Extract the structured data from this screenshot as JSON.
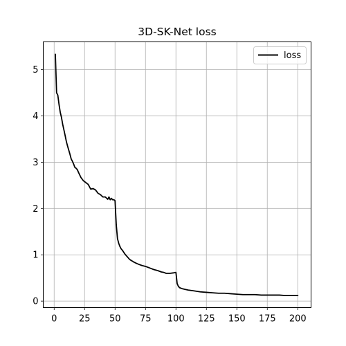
{
  "chart_data": {
    "type": "line",
    "title": "3D-SK-Net loss",
    "xlabel": "",
    "ylabel": "",
    "xlim": [
      -8.95,
      210.95
    ],
    "ylim": [
      -0.14,
      5.6
    ],
    "xticks": [
      0,
      25,
      50,
      75,
      100,
      125,
      150,
      175,
      200
    ],
    "yticks": [
      0,
      1,
      2,
      3,
      4,
      5
    ],
    "grid": true,
    "legend_position": "top-right",
    "series": [
      {
        "name": "loss",
        "color": "#000000",
        "x": [
          1,
          2,
          3,
          4,
          5,
          6,
          7,
          8,
          9,
          10,
          11,
          12,
          13,
          14,
          15,
          16,
          17,
          18,
          19,
          20,
          22,
          24,
          26,
          28,
          30,
          32,
          34,
          36,
          38,
          40,
          42,
          44,
          45,
          46,
          47,
          48,
          49,
          50,
          51,
          52,
          53,
          54,
          55,
          56,
          58,
          60,
          62,
          65,
          68,
          70,
          72,
          75,
          78,
          80,
          82,
          85,
          88,
          90,
          92,
          95,
          98,
          100,
          101,
          102,
          103,
          105,
          108,
          110,
          115,
          120,
          125,
          130,
          135,
          140,
          145,
          150,
          155,
          160,
          165,
          170,
          175,
          180,
          185,
          190,
          195,
          200
        ],
        "y": [
          5.33,
          4.5,
          4.45,
          4.25,
          4.08,
          3.97,
          3.82,
          3.7,
          3.58,
          3.45,
          3.35,
          3.26,
          3.17,
          3.07,
          3.02,
          2.96,
          2.89,
          2.87,
          2.84,
          2.78,
          2.67,
          2.6,
          2.56,
          2.52,
          2.42,
          2.43,
          2.4,
          2.33,
          2.3,
          2.25,
          2.25,
          2.2,
          2.25,
          2.19,
          2.22,
          2.19,
          2.19,
          2.17,
          1.65,
          1.35,
          1.25,
          1.18,
          1.13,
          1.1,
          1.02,
          0.96,
          0.9,
          0.85,
          0.81,
          0.79,
          0.77,
          0.75,
          0.72,
          0.7,
          0.68,
          0.66,
          0.63,
          0.62,
          0.6,
          0.6,
          0.61,
          0.62,
          0.38,
          0.32,
          0.29,
          0.27,
          0.25,
          0.24,
          0.22,
          0.2,
          0.19,
          0.18,
          0.17,
          0.17,
          0.16,
          0.15,
          0.14,
          0.14,
          0.14,
          0.13,
          0.13,
          0.13,
          0.13,
          0.12,
          0.12,
          0.12
        ]
      }
    ]
  }
}
